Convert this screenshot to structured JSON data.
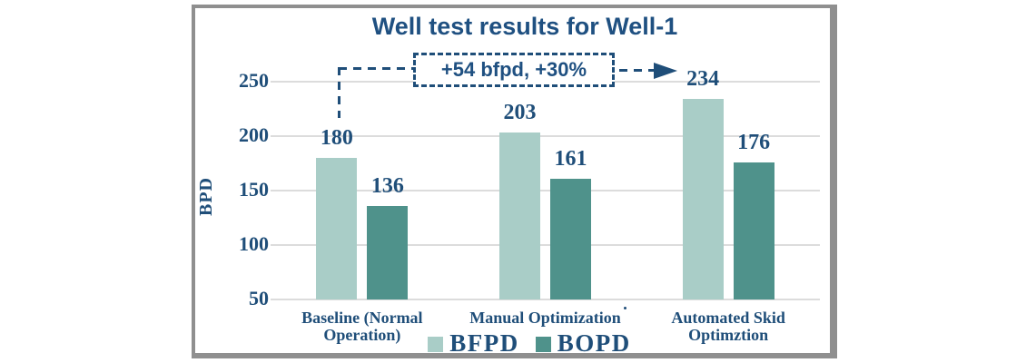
{
  "chart_data": {
    "type": "bar",
    "title": "Well test results for Well-1",
    "xlabel": "",
    "ylabel": "BPD",
    "categories": [
      "Baseline (Normal Operation)",
      "Manual Optimization",
      "Automated Skid Optimztion"
    ],
    "series": [
      {
        "name": "BFPD",
        "color": "#A9CDC7",
        "values": [
          180,
          203,
          234
        ]
      },
      {
        "name": "BOPD",
        "color": "#4F928B",
        "values": [
          136,
          161,
          176
        ]
      }
    ],
    "ylim": [
      50,
      265
    ],
    "yticks": [
      50,
      100,
      150,
      200,
      250
    ],
    "grid": true,
    "legend_position": "bottom",
    "annotation": {
      "text": "+54 bfpd, +30%"
    }
  },
  "colors": {
    "accent_blue": "#1F4E79",
    "title_blue": "#1F5081",
    "gridline": "#DCDCDC",
    "frame_border": "#8F8F8F",
    "background": "#FFFFFF"
  }
}
